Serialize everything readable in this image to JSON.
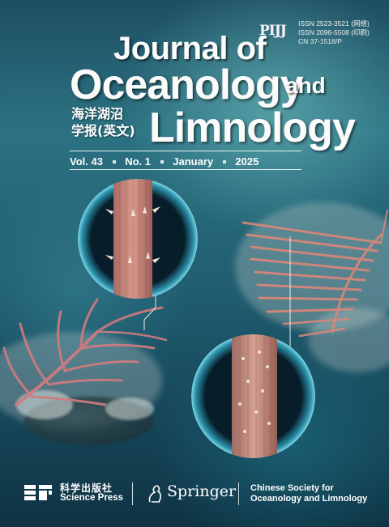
{
  "masthead": {
    "publisher_logo": "PIJJ",
    "issn_print": "ISSN  2523-3521 (网络)",
    "issn_online": "ISSN  2096-5508 (印刷)",
    "cn_number": "CN  37-1518/P"
  },
  "title": {
    "line1": "Journal of",
    "line2": "Oceanology",
    "and": "and",
    "line3": "Limnology",
    "chinese_line1": "海洋湖沼",
    "chinese_line2": "学报(英文)"
  },
  "issue": {
    "volume": "Vol. 43",
    "number": "No. 1",
    "month": "January",
    "year": "2025"
  },
  "footer": {
    "science_press_cn": "科学出版社",
    "science_press_en": "Science Press",
    "springer": "Springer",
    "society_line1": "Chinese Society for",
    "society_line2": "Oceanology and Limnology"
  },
  "colors": {
    "title_text": "#fbfbfb",
    "background_top": "#1d4f62",
    "background_bottom": "#0e3344",
    "coral": "#d9887e"
  }
}
